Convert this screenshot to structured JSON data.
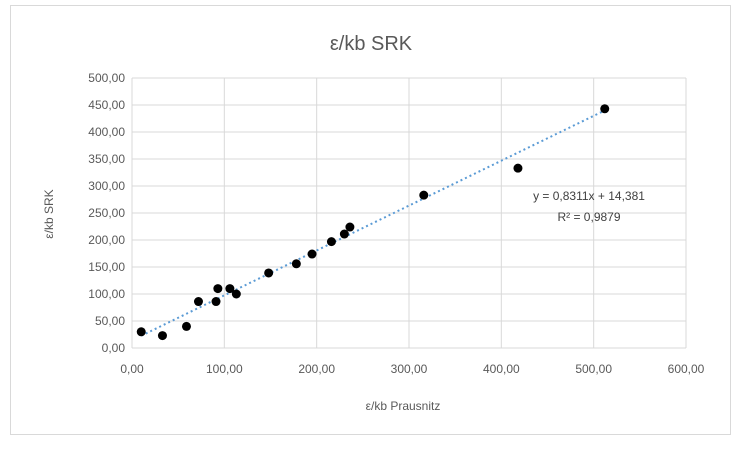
{
  "chart_data": {
    "type": "scatter",
    "title": "ε/kb SRK",
    "xlabel": "ε/kb Prausnitz",
    "ylabel": "ε/kb SRK",
    "xlim": [
      0,
      600
    ],
    "ylim": [
      0,
      500
    ],
    "x_ticks": [
      "0,00",
      "100,00",
      "200,00",
      "300,00",
      "400,00",
      "500,00",
      "600,00"
    ],
    "y_ticks": [
      "0,00",
      "50,00",
      "100,00",
      "150,00",
      "200,00",
      "250,00",
      "300,00",
      "350,00",
      "400,00",
      "450,00",
      "500,00"
    ],
    "grid": true,
    "series": [
      {
        "points": [
          {
            "x": 10,
            "y": 30
          },
          {
            "x": 33,
            "y": 23
          },
          {
            "x": 59,
            "y": 40
          },
          {
            "x": 72,
            "y": 86
          },
          {
            "x": 91,
            "y": 86
          },
          {
            "x": 93,
            "y": 110
          },
          {
            "x": 106,
            "y": 110
          },
          {
            "x": 113,
            "y": 100
          },
          {
            "x": 148,
            "y": 139
          },
          {
            "x": 178,
            "y": 156
          },
          {
            "x": 195,
            "y": 174
          },
          {
            "x": 216,
            "y": 197
          },
          {
            "x": 230,
            "y": 211
          },
          {
            "x": 236,
            "y": 224
          },
          {
            "x": 316,
            "y": 283
          },
          {
            "x": 418,
            "y": 333
          },
          {
            "x": 512,
            "y": 443
          }
        ]
      }
    ],
    "trendline": {
      "slope": 0.8311,
      "intercept": 14.381,
      "x_range": [
        10,
        512
      ],
      "color": "#5b9bd5"
    },
    "annotations": [
      "y = 0,8311x + 14,381",
      "R² = 0,9879"
    ],
    "marker_color": "#000000"
  }
}
